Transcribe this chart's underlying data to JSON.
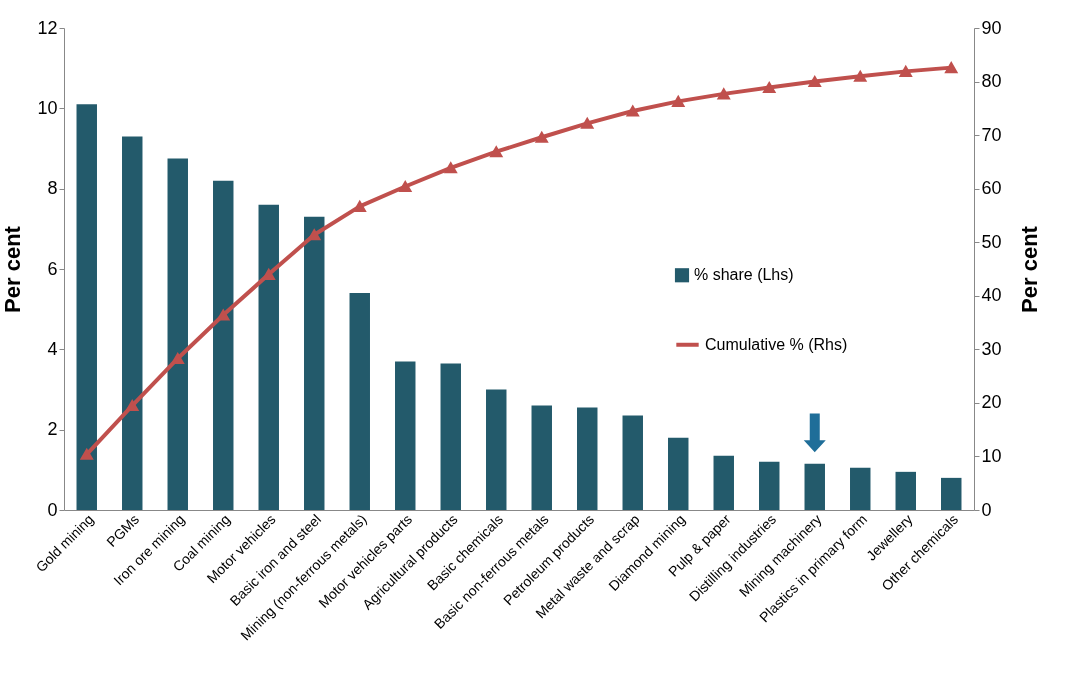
{
  "chart_data": {
    "type": "bar",
    "ylabel": "Per cent",
    "y2label": "Per cent",
    "categories": [
      "Gold mining",
      "PGMs",
      "Iron ore mining",
      "Coal mining",
      "Motor vehicles",
      "Basic iron and steel",
      "Mining (non-ferrous metals)",
      "Motor vehicles parts",
      "Agricultural products",
      "Basic chemicals",
      "Basic non-ferrous metals",
      "Petroleum products",
      "Metal waste and scrap",
      "Diamond mining",
      "Pulp & paper",
      "Distilling industries",
      "Mining machinery",
      "Plastics in primary form",
      "Jewellery",
      "Other chemicals"
    ],
    "series": [
      {
        "name": "% share (Lhs)",
        "color": "#235a6b",
        "values": [
          10.1,
          9.3,
          8.75,
          8.2,
          7.6,
          7.3,
          5.4,
          3.7,
          3.65,
          3.0,
          2.6,
          2.55,
          2.35,
          1.8,
          1.35,
          1.2,
          1.15,
          1.05,
          0.95,
          0.8
        ]
      },
      {
        "name": "Cumulative % (Rhs)",
        "type": "line",
        "axis": "y2",
        "color": "#c0504d",
        "marker": "triangle",
        "values": [
          10.4,
          19.5,
          28.3,
          36.4,
          44.0,
          51.4,
          56.7,
          60.4,
          63.9,
          66.9,
          69.6,
          72.2,
          74.5,
          76.3,
          77.7,
          78.9,
          80.0,
          81.0,
          81.9,
          82.6
        ]
      }
    ],
    "ylim": [
      0,
      12
    ],
    "yticks": [
      0,
      2,
      4,
      6,
      8,
      10,
      12
    ],
    "y2lim": [
      0,
      90
    ],
    "y2ticks": [
      0,
      10,
      20,
      30,
      40,
      50,
      60,
      70,
      80,
      90
    ],
    "grid": false,
    "legend": "right"
  }
}
